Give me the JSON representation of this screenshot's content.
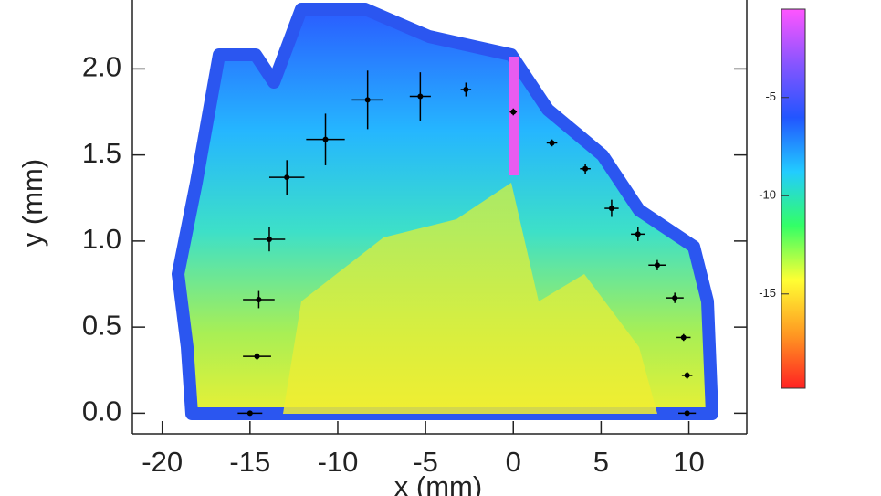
{
  "chart_data": {
    "type": "scatter",
    "x_label": "x (mm)",
    "y_label": "y (mm)",
    "x": [
      -15,
      -14.6,
      -14.5,
      -13.9,
      -12.9,
      -10.7,
      -8.3,
      -5.3,
      -2.7,
      0,
      2.2,
      4.1,
      5.6,
      7.1,
      8.2,
      9.2,
      9.7,
      9.9,
      9.9
    ],
    "values": [
      0.0,
      0.33,
      0.66,
      1.01,
      1.37,
      1.59,
      1.82,
      1.84,
      1.88,
      1.75,
      1.57,
      1.42,
      1.19,
      1.04,
      0.86,
      0.67,
      0.44,
      0.22,
      0.0
    ],
    "xerr": [
      0.7,
      0.8,
      0.9,
      0.9,
      1.0,
      1.1,
      0.9,
      0.6,
      0.3,
      0.2,
      0.3,
      0.3,
      0.4,
      0.4,
      0.5,
      0.5,
      0.4,
      0.3,
      0.5
    ],
    "yerr": [
      0.0,
      0.02,
      0.05,
      0.07,
      0.1,
      0.15,
      0.17,
      0.14,
      0.04,
      0.02,
      0.02,
      0.03,
      0.05,
      0.04,
      0.03,
      0.03,
      0.02,
      0.02,
      0.0
    ],
    "color": "#000000",
    "xlim": [
      -21.7,
      13.3
    ],
    "ylim": [
      -0.12,
      2.4
    ],
    "xticks": [
      -20,
      -15,
      -10,
      -5,
      0,
      5,
      10
    ],
    "yticks": [
      {
        "value": 0,
        "label": "0.0"
      },
      {
        "value": 0.5,
        "label": "0.5"
      },
      {
        "value": 1,
        "label": "1.0"
      },
      {
        "value": 1.5,
        "label": "1.5"
      },
      {
        "value": 2,
        "label": "2.0"
      }
    ],
    "colorbar": {
      "lim": [
        -0.5,
        -19.8
      ],
      "ticks": [
        -5,
        -10,
        -15
      ],
      "colors": [
        "#ff55ff",
        "#8855ff",
        "#2255ff",
        "#22ccff",
        "#33ff66",
        "#ffff33",
        "#ff9922",
        "#ff2222"
      ]
    }
  }
}
